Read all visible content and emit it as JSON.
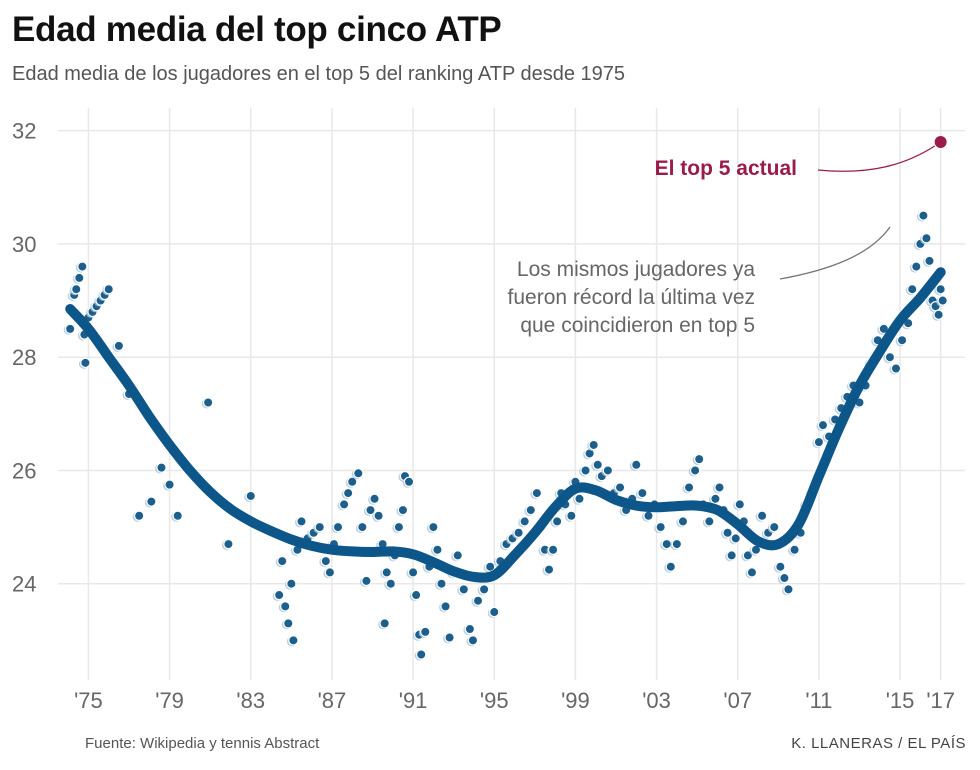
{
  "header": {
    "title": "Edad media del top cinco ATP",
    "subtitle": "Edad media de los jugadores en el top 5 del ranking ATP desde 1975"
  },
  "footer": {
    "source": "Fuente: Wikipedia y tennis Abstract",
    "credit": "K. LLANERAS  /  EL PAÍS"
  },
  "colors": {
    "trend": "#0d5689",
    "points_dark": "#1d5f8c",
    "points_light": "#aac6dc",
    "highlight": "#9b1c4a",
    "grid": "#e8e8e8"
  },
  "chart_data": {
    "type": "scatter",
    "xlabel": "",
    "ylabel": "",
    "xlim": [
      1973.5,
      2018.2
    ],
    "ylim": [
      22.3,
      32.4
    ],
    "x_ticks": [
      1975,
      1979,
      1983,
      1987,
      1991,
      1995,
      1999,
      2003,
      2007,
      2011,
      2015,
      2017
    ],
    "x_tick_labels": [
      "'75",
      "'79",
      "'83",
      "'87",
      "'91",
      "'95",
      "'99",
      "'03",
      "'07",
      "'11",
      "'15",
      "'17"
    ],
    "y_ticks": [
      24,
      26,
      28,
      30,
      32
    ],
    "y_tick_labels": [
      "24",
      "26",
      "28",
      "30",
      "32"
    ],
    "grid": true,
    "trend": {
      "x": [
        1974.1,
        1975,
        1976,
        1977,
        1978,
        1979,
        1980,
        1981,
        1982,
        1983,
        1984,
        1985,
        1986,
        1987,
        1988,
        1989,
        1990,
        1991,
        1992,
        1993,
        1994,
        1995,
        1996,
        1997,
        1998,
        1999,
        2000,
        2001,
        2002,
        2003,
        2004,
        2005,
        2006,
        2007,
        2008,
        2009,
        2010,
        2011,
        2012,
        2013,
        2014,
        2015,
        2016,
        2017
      ],
      "y": [
        28.85,
        28.5,
        28.0,
        27.5,
        26.95,
        26.45,
        26.0,
        25.62,
        25.32,
        25.1,
        24.93,
        24.78,
        24.67,
        24.6,
        24.57,
        24.56,
        24.57,
        24.52,
        24.38,
        24.22,
        24.12,
        24.15,
        24.5,
        24.9,
        25.35,
        25.68,
        25.65,
        25.48,
        25.38,
        25.35,
        25.37,
        25.38,
        25.3,
        25.05,
        24.75,
        24.7,
        25.05,
        25.9,
        26.75,
        27.5,
        28.1,
        28.65,
        29.05,
        29.5
      ]
    },
    "points": [
      {
        "x": 1974.1,
        "y": 28.5
      },
      {
        "x": 1974.3,
        "y": 29.1
      },
      {
        "x": 1974.4,
        "y": 29.2
      },
      {
        "x": 1974.55,
        "y": 29.4
      },
      {
        "x": 1974.7,
        "y": 29.6
      },
      {
        "x": 1974.8,
        "y": 28.4
      },
      {
        "x": 1974.85,
        "y": 27.9
      },
      {
        "x": 1975.0,
        "y": 28.7
      },
      {
        "x": 1975.2,
        "y": 28.8
      },
      {
        "x": 1975.4,
        "y": 28.9
      },
      {
        "x": 1975.6,
        "y": 29.0
      },
      {
        "x": 1975.8,
        "y": 29.1
      },
      {
        "x": 1976.0,
        "y": 29.2
      },
      {
        "x": 1976.5,
        "y": 28.2
      },
      {
        "x": 1977.0,
        "y": 27.35
      },
      {
        "x": 1977.5,
        "y": 25.2
      },
      {
        "x": 1978.1,
        "y": 25.45
      },
      {
        "x": 1978.6,
        "y": 26.05
      },
      {
        "x": 1979.0,
        "y": 25.75
      },
      {
        "x": 1979.4,
        "y": 25.2
      },
      {
        "x": 1980.9,
        "y": 27.2
      },
      {
        "x": 1981.9,
        "y": 24.7
      },
      {
        "x": 1983.0,
        "y": 25.55
      },
      {
        "x": 1984.4,
        "y": 23.8
      },
      {
        "x": 1984.55,
        "y": 24.4
      },
      {
        "x": 1984.7,
        "y": 23.6
      },
      {
        "x": 1984.85,
        "y": 23.3
      },
      {
        "x": 1985.0,
        "y": 24.0
      },
      {
        "x": 1985.1,
        "y": 23.0
      },
      {
        "x": 1985.3,
        "y": 24.6
      },
      {
        "x": 1985.5,
        "y": 25.1
      },
      {
        "x": 1985.8,
        "y": 24.8
      },
      {
        "x": 1986.1,
        "y": 24.9
      },
      {
        "x": 1986.4,
        "y": 25.0
      },
      {
        "x": 1986.7,
        "y": 24.4
      },
      {
        "x": 1986.9,
        "y": 24.2
      },
      {
        "x": 1987.1,
        "y": 24.7
      },
      {
        "x": 1987.3,
        "y": 25.0
      },
      {
        "x": 1987.6,
        "y": 25.4
      },
      {
        "x": 1987.8,
        "y": 25.6
      },
      {
        "x": 1988.0,
        "y": 25.8
      },
      {
        "x": 1988.3,
        "y": 25.95
      },
      {
        "x": 1988.5,
        "y": 25.0
      },
      {
        "x": 1988.7,
        "y": 24.05
      },
      {
        "x": 1988.9,
        "y": 25.3
      },
      {
        "x": 1989.1,
        "y": 25.5
      },
      {
        "x": 1989.3,
        "y": 25.2
      },
      {
        "x": 1989.5,
        "y": 24.7
      },
      {
        "x": 1989.6,
        "y": 23.3
      },
      {
        "x": 1989.7,
        "y": 24.2
      },
      {
        "x": 1989.9,
        "y": 24.0
      },
      {
        "x": 1990.1,
        "y": 24.5
      },
      {
        "x": 1990.3,
        "y": 25.0
      },
      {
        "x": 1990.5,
        "y": 25.3
      },
      {
        "x": 1990.6,
        "y": 25.9
      },
      {
        "x": 1990.8,
        "y": 25.8
      },
      {
        "x": 1991.0,
        "y": 24.2
      },
      {
        "x": 1991.15,
        "y": 23.8
      },
      {
        "x": 1991.3,
        "y": 23.1
      },
      {
        "x": 1991.4,
        "y": 22.75
      },
      {
        "x": 1991.6,
        "y": 23.15
      },
      {
        "x": 1991.8,
        "y": 24.3
      },
      {
        "x": 1992.0,
        "y": 25.0
      },
      {
        "x": 1992.2,
        "y": 24.6
      },
      {
        "x": 1992.4,
        "y": 24.0
      },
      {
        "x": 1992.6,
        "y": 23.6
      },
      {
        "x": 1992.8,
        "y": 23.05
      },
      {
        "x": 1993.0,
        "y": 24.2
      },
      {
        "x": 1993.2,
        "y": 24.5
      },
      {
        "x": 1993.5,
        "y": 23.9
      },
      {
        "x": 1993.8,
        "y": 23.2
      },
      {
        "x": 1993.95,
        "y": 23.0
      },
      {
        "x": 1994.2,
        "y": 23.7
      },
      {
        "x": 1994.5,
        "y": 23.9
      },
      {
        "x": 1994.8,
        "y": 24.3
      },
      {
        "x": 1995.0,
        "y": 23.5
      },
      {
        "x": 1995.3,
        "y": 24.4
      },
      {
        "x": 1995.6,
        "y": 24.7
      },
      {
        "x": 1995.9,
        "y": 24.8
      },
      {
        "x": 1996.2,
        "y": 24.9
      },
      {
        "x": 1996.5,
        "y": 25.1
      },
      {
        "x": 1996.8,
        "y": 25.3
      },
      {
        "x": 1997.1,
        "y": 25.6
      },
      {
        "x": 1997.3,
        "y": 25.0
      },
      {
        "x": 1997.5,
        "y": 24.6
      },
      {
        "x": 1997.7,
        "y": 24.25
      },
      {
        "x": 1997.9,
        "y": 24.6
      },
      {
        "x": 1998.1,
        "y": 25.1
      },
      {
        "x": 1998.3,
        "y": 25.6
      },
      {
        "x": 1998.5,
        "y": 25.4
      },
      {
        "x": 1998.8,
        "y": 25.2
      },
      {
        "x": 1999.0,
        "y": 25.8
      },
      {
        "x": 1999.2,
        "y": 25.5
      },
      {
        "x": 1999.5,
        "y": 26.0
      },
      {
        "x": 1999.7,
        "y": 26.3
      },
      {
        "x": 1999.9,
        "y": 26.45
      },
      {
        "x": 2000.1,
        "y": 26.1
      },
      {
        "x": 2000.3,
        "y": 25.9
      },
      {
        "x": 2000.6,
        "y": 26.0
      },
      {
        "x": 2000.9,
        "y": 25.6
      },
      {
        "x": 2001.2,
        "y": 25.7
      },
      {
        "x": 2001.5,
        "y": 25.3
      },
      {
        "x": 2001.8,
        "y": 25.5
      },
      {
        "x": 2002.0,
        "y": 26.1
      },
      {
        "x": 2002.3,
        "y": 25.6
      },
      {
        "x": 2002.6,
        "y": 25.2
      },
      {
        "x": 2002.9,
        "y": 25.4
      },
      {
        "x": 2003.2,
        "y": 25.0
      },
      {
        "x": 2003.5,
        "y": 24.7
      },
      {
        "x": 2003.7,
        "y": 24.3
      },
      {
        "x": 2004.0,
        "y": 24.7
      },
      {
        "x": 2004.3,
        "y": 25.1
      },
      {
        "x": 2004.6,
        "y": 25.7
      },
      {
        "x": 2004.9,
        "y": 26.0
      },
      {
        "x": 2005.1,
        "y": 26.2
      },
      {
        "x": 2005.3,
        "y": 25.4
      },
      {
        "x": 2005.6,
        "y": 25.1
      },
      {
        "x": 2005.9,
        "y": 25.5
      },
      {
        "x": 2006.1,
        "y": 25.7
      },
      {
        "x": 2006.3,
        "y": 25.3
      },
      {
        "x": 2006.5,
        "y": 24.9
      },
      {
        "x": 2006.7,
        "y": 24.5
      },
      {
        "x": 2006.9,
        "y": 24.8
      },
      {
        "x": 2007.1,
        "y": 25.4
      },
      {
        "x": 2007.3,
        "y": 25.1
      },
      {
        "x": 2007.5,
        "y": 24.5
      },
      {
        "x": 2007.7,
        "y": 24.2
      },
      {
        "x": 2007.9,
        "y": 24.6
      },
      {
        "x": 2008.2,
        "y": 25.2
      },
      {
        "x": 2008.5,
        "y": 24.9
      },
      {
        "x": 2008.8,
        "y": 25.0
      },
      {
        "x": 2009.1,
        "y": 24.3
      },
      {
        "x": 2009.3,
        "y": 24.1
      },
      {
        "x": 2009.5,
        "y": 23.9
      },
      {
        "x": 2009.8,
        "y": 24.6
      },
      {
        "x": 2010.1,
        "y": 24.9
      },
      {
        "x": 2010.4,
        "y": 25.4
      },
      {
        "x": 2010.7,
        "y": 25.6
      },
      {
        "x": 2011.0,
        "y": 26.5
      },
      {
        "x": 2011.2,
        "y": 26.8
      },
      {
        "x": 2011.5,
        "y": 26.6
      },
      {
        "x": 2011.8,
        "y": 26.9
      },
      {
        "x": 2012.1,
        "y": 27.1
      },
      {
        "x": 2012.4,
        "y": 27.3
      },
      {
        "x": 2012.7,
        "y": 27.5
      },
      {
        "x": 2013.0,
        "y": 27.2
      },
      {
        "x": 2013.3,
        "y": 27.5
      },
      {
        "x": 2013.6,
        "y": 27.9
      },
      {
        "x": 2013.9,
        "y": 28.3
      },
      {
        "x": 2014.2,
        "y": 28.5
      },
      {
        "x": 2014.5,
        "y": 28.0
      },
      {
        "x": 2014.8,
        "y": 27.8
      },
      {
        "x": 2015.1,
        "y": 28.3
      },
      {
        "x": 2015.4,
        "y": 28.6
      },
      {
        "x": 2015.6,
        "y": 29.2
      },
      {
        "x": 2015.8,
        "y": 29.6
      },
      {
        "x": 2016.0,
        "y": 30.0
      },
      {
        "x": 2016.15,
        "y": 30.5
      },
      {
        "x": 2016.3,
        "y": 30.1
      },
      {
        "x": 2016.45,
        "y": 29.7
      },
      {
        "x": 2016.6,
        "y": 29.0
      },
      {
        "x": 2016.75,
        "y": 28.9
      },
      {
        "x": 2016.9,
        "y": 28.75
      },
      {
        "x": 2017.0,
        "y": 29.2
      },
      {
        "x": 2017.1,
        "y": 29.0
      }
    ],
    "highlight_point": {
      "x": 2017.0,
      "y": 31.8
    },
    "annotations": [
      {
        "name": "current",
        "text": "El top 5 actual"
      },
      {
        "name": "record",
        "lines": [
          "Los mismos jugadores ya",
          "fueron récord la última vez",
          "que coincidieron en top 5"
        ]
      }
    ]
  }
}
